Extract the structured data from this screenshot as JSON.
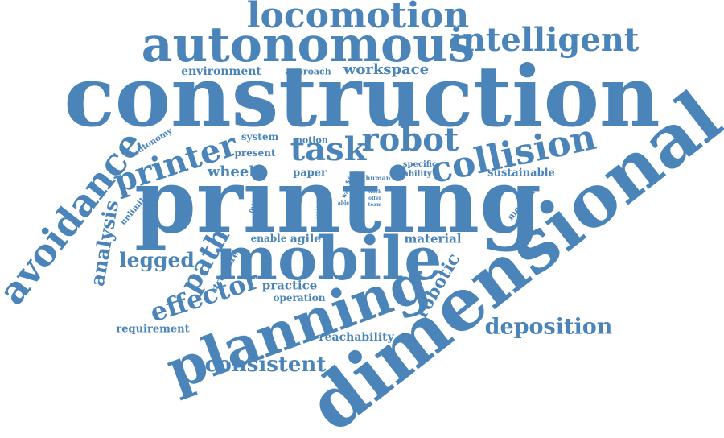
{
  "cloud": {
    "color": "#4a84b8",
    "words": [
      {
        "id": "construction",
        "text": "construction"
      },
      {
        "id": "printing",
        "text": "printing"
      },
      {
        "id": "dimensional",
        "text": "dimensional"
      },
      {
        "id": "mobile",
        "text": "mobile"
      },
      {
        "id": "planning",
        "text": "planning"
      },
      {
        "id": "autonomous",
        "text": "autonomous"
      },
      {
        "id": "locomotion",
        "text": "locomotion"
      },
      {
        "id": "intelligent",
        "text": "intelligent"
      },
      {
        "id": "avoidance",
        "text": "avoidance"
      },
      {
        "id": "collision",
        "text": "collision"
      },
      {
        "id": "robot",
        "text": "robot"
      },
      {
        "id": "task",
        "text": "task"
      },
      {
        "id": "printer",
        "text": "printer"
      },
      {
        "id": "effector",
        "text": "effector"
      },
      {
        "id": "path",
        "text": "path"
      },
      {
        "id": "analysis",
        "text": "analysis"
      },
      {
        "id": "deposition",
        "text": "deposition"
      },
      {
        "id": "consistent",
        "text": "consistent"
      },
      {
        "id": "legged",
        "text": "legged"
      },
      {
        "id": "robotic",
        "text": "robotic"
      },
      {
        "id": "workspace",
        "text": "workspace"
      },
      {
        "id": "environment",
        "text": "environment"
      },
      {
        "id": "approach",
        "text": "approach"
      },
      {
        "id": "wheel",
        "text": "wheel"
      },
      {
        "id": "material",
        "text": "material"
      },
      {
        "id": "practice",
        "text": "practice"
      },
      {
        "id": "requirement",
        "text": "requirement"
      },
      {
        "id": "reachability",
        "text": "reachability"
      },
      {
        "id": "sustainable",
        "text": "sustainable"
      },
      {
        "id": "operation",
        "text": "operation"
      },
      {
        "id": "enable",
        "text": "enable"
      },
      {
        "id": "agile",
        "text": "agile"
      },
      {
        "id": "system",
        "text": "system"
      },
      {
        "id": "motion",
        "text": "motion"
      },
      {
        "id": "present",
        "text": "present"
      },
      {
        "id": "paper",
        "text": "paper"
      },
      {
        "id": "autonomy",
        "text": "autonomy"
      },
      {
        "id": "unlimited",
        "text": "unlimited"
      },
      {
        "id": "method",
        "text": "method"
      },
      {
        "id": "structure",
        "text": "structure"
      },
      {
        "id": "specific",
        "text": "specific"
      },
      {
        "id": "ability",
        "text": "ability"
      },
      {
        "id": "site",
        "text": "site"
      },
      {
        "id": "human",
        "text": "human"
      },
      {
        "id": "million",
        "text": "million"
      },
      {
        "id": "volume",
        "text": "volume"
      },
      {
        "id": "way",
        "text": "way"
      },
      {
        "id": "able",
        "text": "able"
      },
      {
        "id": "work",
        "text": "work"
      },
      {
        "id": "offer",
        "text": "offer"
      },
      {
        "id": "team",
        "text": "team"
      }
    ]
  }
}
